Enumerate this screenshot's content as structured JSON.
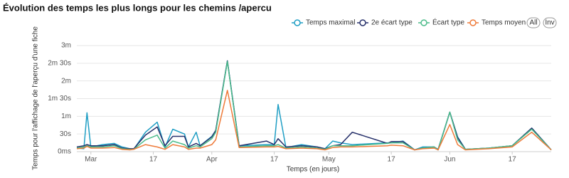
{
  "chart_data": {
    "type": "line",
    "title": "Évolution des temps les plus longs pour les chemins /apercu",
    "x_label": "Temps (en jours)",
    "y_label": "Temps pour l'affichage de l'aperçu d'une fiche",
    "buttons": [
      "All",
      "Inv"
    ],
    "legend": "top-right",
    "grid": true,
    "xlim": [
      -3.6,
      118
    ],
    "xticks": [
      {
        "value": 0,
        "label": "Mar"
      },
      {
        "value": 16,
        "label": "17"
      },
      {
        "value": 31,
        "label": "Apr"
      },
      {
        "value": 47,
        "label": "17"
      },
      {
        "value": 61,
        "label": "May"
      },
      {
        "value": 77,
        "label": "17"
      },
      {
        "value": 92,
        "label": "Jun"
      },
      {
        "value": 108,
        "label": "17"
      }
    ],
    "ylim": [
      0,
      180
    ],
    "yticks": [
      {
        "value": 0,
        "label": "0ms"
      },
      {
        "value": 30,
        "label": "30s"
      },
      {
        "value": 60,
        "label": "1m"
      },
      {
        "value": 90,
        "label": "1m 30s"
      },
      {
        "value": 120,
        "label": "2m"
      },
      {
        "value": 150,
        "label": "2m 30s"
      },
      {
        "value": 180,
        "label": "3m"
      }
    ],
    "x": [
      -3.6,
      -1.8,
      -1,
      0,
      3,
      6,
      8,
      10,
      11,
      14,
      17,
      19,
      21,
      24,
      25,
      27,
      28,
      31,
      32,
      35,
      38,
      45,
      47,
      48,
      50,
      54,
      58,
      60,
      62,
      64,
      67,
      76,
      77,
      80,
      83,
      85,
      88,
      89,
      92,
      94,
      96,
      102,
      108,
      113,
      118
    ],
    "series": [
      {
        "name": "Temps maximal",
        "color": "#1f9ec4",
        "values": [
          6,
          5,
          66,
          8,
          12,
          14,
          8,
          5,
          4,
          33,
          50,
          8,
          38,
          30,
          8,
          33,
          10,
          26,
          36,
          154,
          10,
          12,
          12,
          80,
          7,
          12,
          8,
          5,
          18,
          15,
          12,
          15,
          15,
          18,
          3,
          8,
          8,
          4,
          67,
          25,
          4,
          6,
          10,
          40,
          3
        ]
      },
      {
        "name": "2e écart type",
        "color": "#27316b",
        "values": [
          8,
          10,
          12,
          10,
          10,
          12,
          6,
          5,
          5,
          28,
          42,
          10,
          26,
          26,
          8,
          14,
          10,
          25,
          36,
          154,
          10,
          18,
          12,
          22,
          8,
          10,
          8,
          5,
          10,
          12,
          33,
          14,
          17,
          17,
          3,
          6,
          8,
          3,
          67,
          24,
          4,
          6,
          10,
          40,
          3
        ]
      },
      {
        "name": "Écart type",
        "color": "#4cbb8a",
        "values": [
          6,
          8,
          10,
          8,
          8,
          10,
          5,
          4,
          4,
          20,
          28,
          6,
          18,
          12,
          6,
          10,
          8,
          22,
          33,
          153,
          8,
          10,
          10,
          12,
          6,
          8,
          6,
          4,
          10,
          10,
          10,
          14,
          15,
          15,
          3,
          6,
          8,
          3,
          67,
          20,
          4,
          6,
          10,
          38,
          3
        ]
      },
      {
        "name": "Temps moyen",
        "color": "#ee7b3a",
        "values": [
          5,
          6,
          9,
          6,
          6,
          7,
          4,
          3,
          4,
          12,
          8,
          4,
          12,
          8,
          4,
          6,
          6,
          12,
          20,
          104,
          7,
          8,
          8,
          9,
          5,
          6,
          5,
          3,
          7,
          8,
          8,
          10,
          11,
          10,
          3,
          5,
          6,
          3,
          46,
          12,
          3,
          5,
          8,
          33,
          3
        ]
      }
    ]
  }
}
